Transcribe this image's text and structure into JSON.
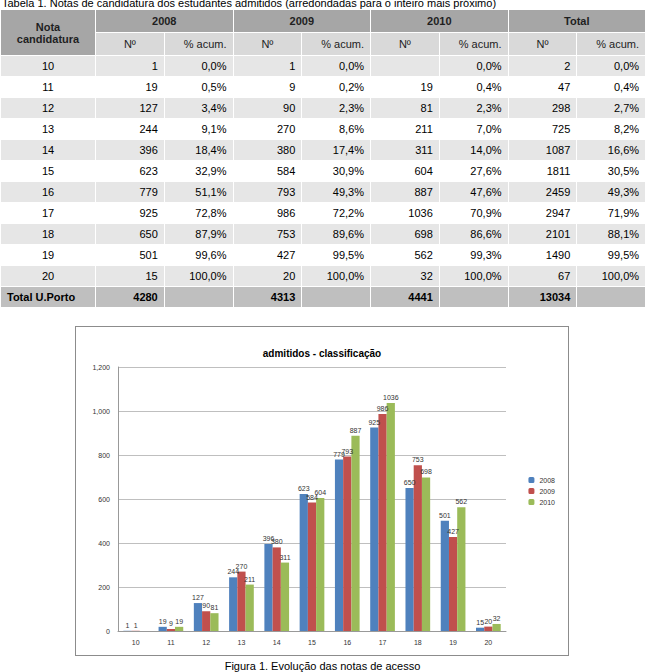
{
  "table_caption": "Tabela 1. Notas de candidatura dos estudantes admitidos (arredondadas para o inteiro mais próximo)",
  "table": {
    "header": [
      "Nota candidatura",
      "2008",
      "2009",
      "2010",
      "Total"
    ],
    "subheader": [
      "Nº",
      "% acum.",
      "Nº",
      "% acum.",
      "Nº",
      "% acum.",
      "Nº",
      "% acum."
    ],
    "rows": [
      [
        10,
        1,
        "0,0%",
        1,
        "0,0%",
        null,
        "0,0%",
        2,
        "0,0%"
      ],
      [
        11,
        19,
        "0,5%",
        9,
        "0,2%",
        19,
        "0,4%",
        47,
        "0,4%"
      ],
      [
        12,
        127,
        "3,4%",
        90,
        "2,3%",
        81,
        "2,3%",
        298,
        "2,7%"
      ],
      [
        13,
        244,
        "9,1%",
        270,
        "8,6%",
        211,
        "7,0%",
        725,
        "8,2%"
      ],
      [
        14,
        396,
        "18,4%",
        380,
        "17,4%",
        311,
        "14,0%",
        1087,
        "16,6%"
      ],
      [
        15,
        623,
        "32,9%",
        584,
        "30,9%",
        604,
        "27,6%",
        1811,
        "30,5%"
      ],
      [
        16,
        779,
        "51,1%",
        793,
        "49,3%",
        887,
        "47,6%",
        2459,
        "49,3%"
      ],
      [
        17,
        925,
        "72,8%",
        986,
        "72,2%",
        1036,
        "70,9%",
        2947,
        "71,9%"
      ],
      [
        18,
        650,
        "87,9%",
        753,
        "89,6%",
        698,
        "86,6%",
        2101,
        "88,1%"
      ],
      [
        19,
        501,
        "99,6%",
        427,
        "99,5%",
        562,
        "99,3%",
        1490,
        "99,5%"
      ],
      [
        20,
        15,
        "100,0%",
        20,
        "100,0%",
        32,
        "100,0%",
        67,
        "100,0%"
      ]
    ],
    "total": [
      "Total U.Porto",
      4280,
      null,
      4313,
      null,
      4441,
      null,
      13034,
      null
    ]
  },
  "chart_data": {
    "type": "bar",
    "title": "admitidos - classificação",
    "categories": [
      10,
      11,
      12,
      13,
      14,
      15,
      16,
      17,
      18,
      19,
      20
    ],
    "series": [
      {
        "name": "2008",
        "color": "#4f81bd",
        "values": [
          1,
          19,
          127,
          244,
          396,
          623,
          779,
          925,
          650,
          501,
          15
        ]
      },
      {
        "name": "2009",
        "color": "#c0504d",
        "values": [
          1,
          9,
          90,
          270,
          380,
          584,
          793,
          986,
          753,
          427,
          20
        ]
      },
      {
        "name": "2010",
        "color": "#9bbb59",
        "values": [
          null,
          19,
          81,
          211,
          311,
          604,
          887,
          1036,
          698,
          562,
          32
        ]
      }
    ],
    "ylim": [
      0,
      1200
    ],
    "yticks": [
      0,
      200,
      400,
      600,
      800,
      1000,
      1200
    ],
    "grid": true,
    "legend": "right",
    "data_labels": true
  },
  "figure_caption": "Figura 1. Evolução das notas de acesso"
}
